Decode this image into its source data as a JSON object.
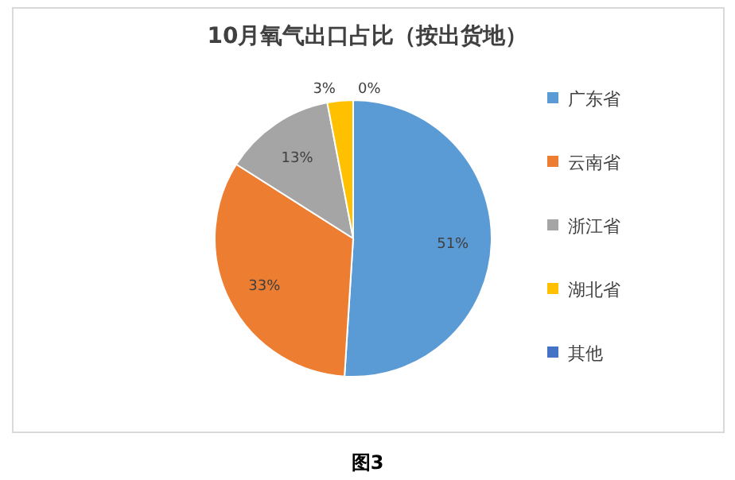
{
  "chart_data": {
    "type": "pie",
    "title": "10月氧气出口占比（按出货地）",
    "categories": [
      "广东省",
      "云南省",
      "浙江省",
      "湖北省",
      "其他"
    ],
    "values": [
      51,
      33,
      13,
      3,
      0
    ],
    "colors": [
      "#5b9bd5",
      "#ed7d31",
      "#a5a5a5",
      "#ffc000",
      "#4472c4"
    ],
    "value_labels": [
      "51%",
      "33%",
      "13%",
      "3%",
      "0%"
    ],
    "legend": "right",
    "annotations": [
      "图3"
    ]
  }
}
